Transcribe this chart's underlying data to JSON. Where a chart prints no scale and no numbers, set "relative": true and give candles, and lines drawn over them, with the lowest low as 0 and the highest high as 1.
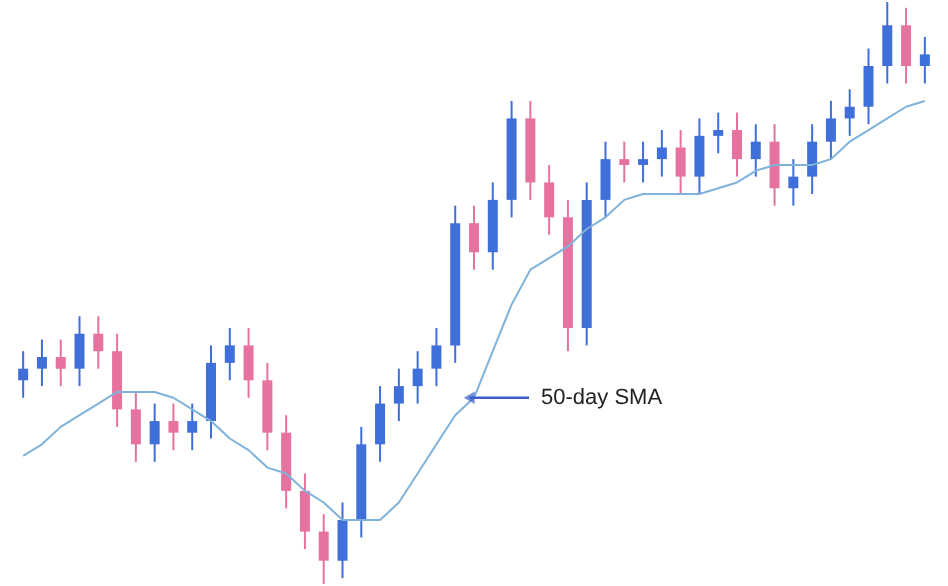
{
  "chart_data": {
    "type": "candlestick",
    "relative": true,
    "categories": [
      null,
      null,
      null,
      null,
      null,
      null,
      null,
      null,
      null,
      null,
      null,
      null,
      null,
      null,
      null,
      null,
      null,
      null,
      null,
      null,
      null,
      null,
      null,
      null,
      null,
      null,
      null,
      null,
      null,
      null,
      null,
      null,
      null,
      null,
      null,
      null,
      null,
      null,
      null,
      null,
      null,
      null,
      null,
      null,
      null,
      null,
      null,
      null,
      null
    ],
    "ohlc": [
      [
        0.35,
        0.4,
        0.32,
        0.37
      ],
      [
        0.37,
        0.42,
        0.34,
        0.39
      ],
      [
        0.39,
        0.42,
        0.34,
        0.37
      ],
      [
        0.37,
        0.46,
        0.34,
        0.43
      ],
      [
        0.43,
        0.46,
        0.37,
        0.4
      ],
      [
        0.4,
        0.43,
        0.27,
        0.3
      ],
      [
        0.3,
        0.33,
        0.21,
        0.24
      ],
      [
        0.24,
        0.31,
        0.21,
        0.28
      ],
      [
        0.28,
        0.31,
        0.23,
        0.26
      ],
      [
        0.26,
        0.31,
        0.23,
        0.28
      ],
      [
        0.28,
        0.41,
        0.25,
        0.38
      ],
      [
        0.38,
        0.44,
        0.35,
        0.41
      ],
      [
        0.41,
        0.44,
        0.32,
        0.35
      ],
      [
        0.35,
        0.38,
        0.23,
        0.26
      ],
      [
        0.26,
        0.29,
        0.13,
        0.16
      ],
      [
        0.16,
        0.19,
        0.06,
        0.09
      ],
      [
        0.09,
        0.12,
        0.0,
        0.04
      ],
      [
        0.04,
        0.14,
        0.01,
        0.11
      ],
      [
        0.11,
        0.27,
        0.08,
        0.24
      ],
      [
        0.24,
        0.34,
        0.21,
        0.31
      ],
      [
        0.31,
        0.37,
        0.28,
        0.34
      ],
      [
        0.34,
        0.4,
        0.31,
        0.37
      ],
      [
        0.37,
        0.44,
        0.34,
        0.41
      ],
      [
        0.41,
        0.65,
        0.38,
        0.62
      ],
      [
        0.62,
        0.65,
        0.54,
        0.57
      ],
      [
        0.57,
        0.69,
        0.54,
        0.66
      ],
      [
        0.66,
        0.83,
        0.63,
        0.8
      ],
      [
        0.8,
        0.83,
        0.66,
        0.69
      ],
      [
        0.69,
        0.72,
        0.6,
        0.63
      ],
      [
        0.63,
        0.66,
        0.4,
        0.44
      ],
      [
        0.44,
        0.69,
        0.41,
        0.66
      ],
      [
        0.66,
        0.76,
        0.63,
        0.73
      ],
      [
        0.73,
        0.76,
        0.69,
        0.72
      ],
      [
        0.72,
        0.76,
        0.69,
        0.73
      ],
      [
        0.73,
        0.78,
        0.7,
        0.75
      ],
      [
        0.75,
        0.78,
        0.67,
        0.7
      ],
      [
        0.7,
        0.8,
        0.67,
        0.77
      ],
      [
        0.77,
        0.81,
        0.74,
        0.78
      ],
      [
        0.78,
        0.81,
        0.7,
        0.73
      ],
      [
        0.73,
        0.79,
        0.7,
        0.76
      ],
      [
        0.76,
        0.79,
        0.65,
        0.68
      ],
      [
        0.68,
        0.73,
        0.65,
        0.7
      ],
      [
        0.7,
        0.79,
        0.67,
        0.76
      ],
      [
        0.76,
        0.83,
        0.73,
        0.8
      ],
      [
        0.8,
        0.85,
        0.77,
        0.82
      ],
      [
        0.82,
        0.92,
        0.79,
        0.89
      ],
      [
        0.89,
        1.0,
        0.86,
        0.96
      ],
      [
        0.96,
        0.99,
        0.86,
        0.89
      ],
      [
        0.89,
        0.94,
        0.86,
        0.91
      ]
    ],
    "colors": [
      "#3f6fd8",
      "#3f6fd8",
      "#e6739f",
      "#3f6fd8",
      "#e6739f",
      "#e6739f",
      "#e6739f",
      "#3f6fd8",
      "#e6739f",
      "#3f6fd8",
      "#3f6fd8",
      "#3f6fd8",
      "#e6739f",
      "#e6739f",
      "#e6739f",
      "#e6739f",
      "#e6739f",
      "#3f6fd8",
      "#3f6fd8",
      "#3f6fd8",
      "#3f6fd8",
      "#3f6fd8",
      "#3f6fd8",
      "#3f6fd8",
      "#e6739f",
      "#3f6fd8",
      "#3f6fd8",
      "#e6739f",
      "#e6739f",
      "#e6739f",
      "#3f6fd8",
      "#3f6fd8",
      "#e6739f",
      "#3f6fd8",
      "#3f6fd8",
      "#e6739f",
      "#3f6fd8",
      "#3f6fd8",
      "#e6739f",
      "#3f6fd8",
      "#e6739f",
      "#3f6fd8",
      "#3f6fd8",
      "#3f6fd8",
      "#3f6fd8",
      "#3f6fd8",
      "#3f6fd8",
      "#e6739f",
      "#3f6fd8"
    ],
    "series": [
      {
        "type": "line",
        "color": "#7fb2db",
        "values": [
          0.22,
          0.24,
          0.27,
          0.29,
          0.31,
          0.33,
          0.33,
          0.33,
          0.32,
          0.3,
          0.28,
          0.25,
          0.23,
          0.2,
          0.19,
          0.16,
          0.14,
          0.11,
          0.11,
          0.11,
          0.14,
          0.19,
          0.24,
          0.29,
          0.32,
          0.4,
          0.48,
          0.54,
          0.56,
          0.58,
          0.61,
          0.63,
          0.66,
          0.67,
          0.67,
          0.67,
          0.67,
          0.68,
          0.69,
          0.71,
          0.72,
          0.72,
          0.72,
          0.73,
          0.76,
          0.78,
          0.8,
          0.82,
          0.83
        ]
      }
    ],
    "annotations": [
      "50-day SMA"
    ]
  }
}
